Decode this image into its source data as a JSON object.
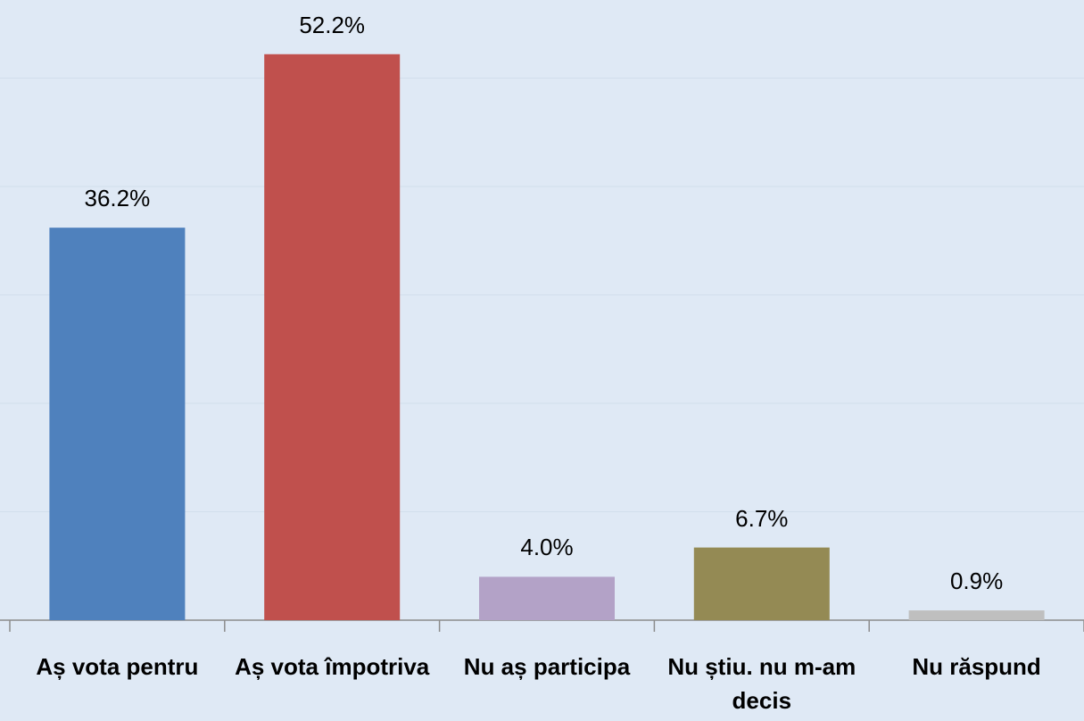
{
  "chart_data": {
    "type": "bar",
    "categories": [
      "Aș vota pentru",
      "Aș vota împotriva",
      "Nu aș participa",
      "Nu știu. nu m-am decis",
      "Nu răspund"
    ],
    "values": [
      36.2,
      52.2,
      4.0,
      6.7,
      0.9
    ],
    "value_labels": [
      "36.2%",
      "52.2%",
      "4.0%",
      "6.7%",
      "0.9%"
    ],
    "colors": [
      "#4f81bd",
      "#c0504d",
      "#b3a2c7",
      "#948a54",
      "#bfbfbf"
    ],
    "ylim": [
      0,
      57.2
    ],
    "yticks": [
      0,
      10,
      20,
      30,
      40,
      50
    ],
    "grid": true
  }
}
